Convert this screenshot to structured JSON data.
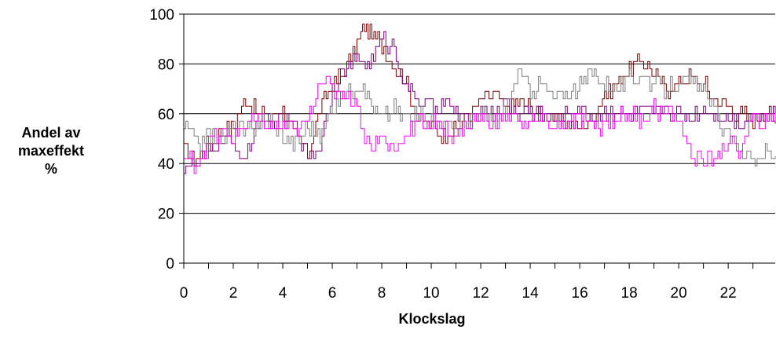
{
  "chart_data": {
    "type": "line",
    "title": "",
    "xlabel": "Klockslag",
    "ylabel_lines": [
      "Andel av",
      "maxeffekt",
      "%"
    ],
    "xlim": [
      0,
      23.9
    ],
    "ylim": [
      0,
      100
    ],
    "yticks": [
      0,
      20,
      40,
      60,
      80,
      100
    ],
    "xticks": [
      0,
      2,
      4,
      6,
      8,
      10,
      12,
      14,
      16,
      18,
      20,
      22
    ],
    "grid": "horizontal",
    "legend": "none",
    "series": [
      {
        "color": "#800000",
        "x": [
          0,
          0.5,
          1,
          1.5,
          2,
          2.5,
          3,
          3.5,
          4,
          4.5,
          5,
          5.5,
          6,
          6.5,
          7,
          7.3,
          7.6,
          8,
          8.5,
          9,
          9.5,
          10,
          10.5,
          11,
          11.5,
          12,
          12.5,
          13,
          13.5,
          14,
          14.5,
          15,
          15.5,
          16,
          16.5,
          17,
          17.5,
          18,
          18.5,
          19,
          19.5,
          20,
          20.5,
          21,
          21.5,
          22,
          22.5,
          23,
          23.5,
          23.9
        ],
        "y": [
          45,
          42,
          48,
          52,
          55,
          66,
          60,
          58,
          62,
          50,
          45,
          62,
          72,
          78,
          88,
          96,
          92,
          88,
          80,
          72,
          58,
          55,
          52,
          55,
          60,
          66,
          68,
          62,
          65,
          62,
          60,
          58,
          56,
          54,
          58,
          68,
          72,
          78,
          82,
          75,
          70,
          72,
          75,
          72,
          66,
          62,
          60,
          58,
          62,
          56
        ]
      },
      {
        "color": "#800080",
        "x": [
          0,
          0.5,
          1,
          1.5,
          2,
          2.5,
          3,
          3.5,
          4,
          4.5,
          5,
          5.5,
          6,
          6.5,
          7,
          7.5,
          8,
          8.5,
          9,
          9.5,
          10,
          10.5,
          11,
          11.5,
          12,
          12.5,
          13,
          13.5,
          14,
          14.5,
          15,
          15.5,
          16,
          16.5,
          17,
          17.5,
          18,
          18.5,
          19,
          19.5,
          20,
          20.5,
          21,
          21.5,
          22,
          22.5,
          23,
          23.5,
          23.9
        ],
        "y": [
          40,
          38,
          45,
          50,
          48,
          42,
          58,
          55,
          58,
          55,
          42,
          48,
          70,
          78,
          82,
          80,
          90,
          86,
          70,
          66,
          62,
          65,
          60,
          56,
          62,
          60,
          64,
          60,
          62,
          60,
          58,
          60,
          62,
          58,
          60,
          62,
          58,
          62,
          60,
          62,
          60,
          58,
          62,
          60,
          58,
          56,
          60,
          58,
          60
        ]
      },
      {
        "color": "#808080",
        "x": [
          0,
          0.5,
          1,
          1.5,
          2,
          2.5,
          3,
          3.5,
          4,
          4.5,
          5,
          5.5,
          6,
          6.5,
          7,
          7.5,
          8,
          8.5,
          9,
          9.5,
          10,
          10.5,
          11,
          11.5,
          12,
          12.5,
          13,
          13.5,
          14,
          14.5,
          15,
          15.5,
          16,
          16.5,
          17,
          17.5,
          18,
          18.5,
          19,
          19.5,
          20,
          20.5,
          21,
          21.5,
          22,
          22.5,
          23,
          23.5,
          23.9
        ],
        "y": [
          55,
          48,
          52,
          50,
          55,
          52,
          56,
          58,
          50,
          48,
          55,
          52,
          62,
          68,
          72,
          66,
          58,
          62,
          58,
          60,
          58,
          56,
          54,
          58,
          60,
          56,
          62,
          76,
          70,
          72,
          66,
          68,
          72,
          76,
          72,
          70,
          74,
          76,
          72,
          70,
          74,
          72,
          70,
          60,
          50,
          46,
          42,
          44,
          43
        ]
      },
      {
        "color": "#ff00ff",
        "x": [
          0,
          0.5,
          1,
          1.5,
          2,
          2.5,
          3,
          3.5,
          4,
          4.5,
          5,
          5.5,
          6,
          6.5,
          7,
          7.3,
          7.5,
          8,
          8.5,
          9,
          9.5,
          10,
          10.5,
          11,
          11.5,
          12,
          12.5,
          13,
          13.5,
          14,
          14.5,
          15,
          15.5,
          16,
          16.5,
          17,
          17.5,
          18,
          18.5,
          19,
          19.5,
          20,
          20.5,
          21,
          21.5,
          22,
          22.5,
          23,
          23.5,
          23.9
        ],
        "y": [
          42,
          40,
          48,
          52,
          50,
          55,
          58,
          54,
          56,
          52,
          58,
          74,
          70,
          68,
          64,
          52,
          48,
          50,
          46,
          52,
          58,
          56,
          54,
          52,
          56,
          58,
          56,
          60,
          58,
          56,
          58,
          54,
          56,
          58,
          54,
          56,
          58,
          60,
          58,
          62,
          60,
          58,
          44,
          40,
          44,
          48,
          46,
          58,
          56,
          60
        ]
      }
    ]
  }
}
